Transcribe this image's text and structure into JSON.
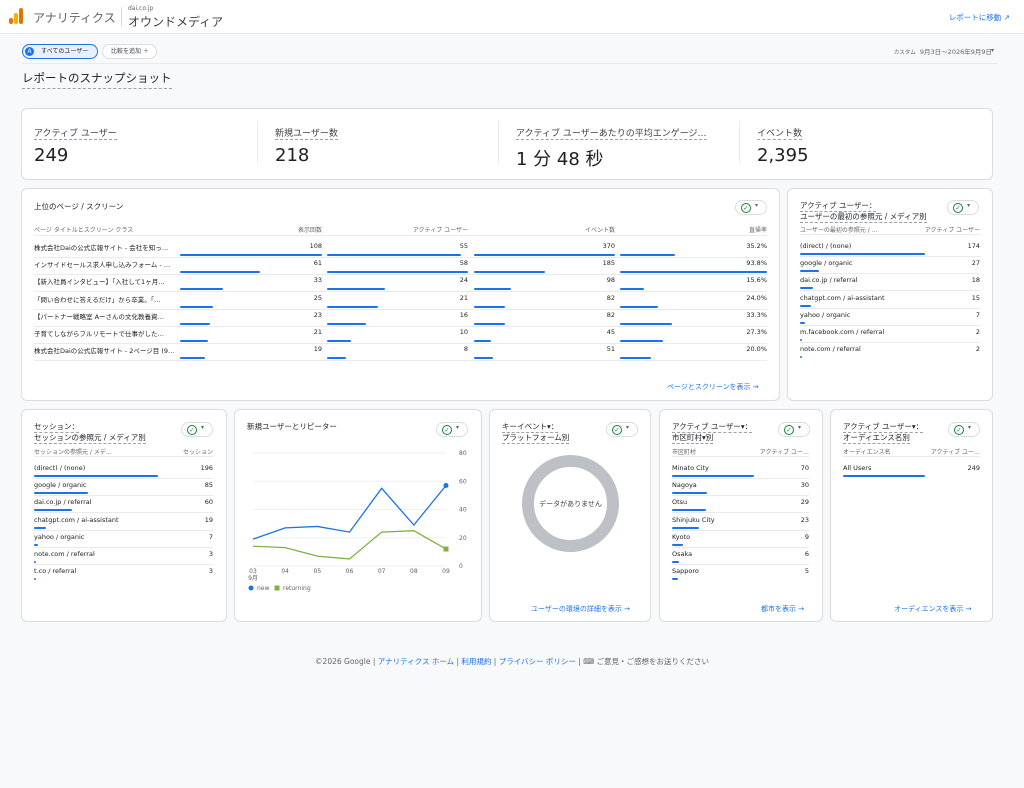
{
  "header": {
    "app_title": "アナリティクス",
    "account": "dai.co.jp",
    "property": "オウンドメディア",
    "goto_report": "レポートに移動"
  },
  "toolbar": {
    "segment_label": "すべてのユーザー",
    "segment_icon": "A",
    "compare_label": "比較を追加",
    "date_prefix": "カスタム",
    "date_range": "9月3日～2026年9月9日"
  },
  "page": {
    "title": "レポートのスナップショット"
  },
  "kpis": [
    {
      "label": "アクティブ ユーザー",
      "value": "249"
    },
    {
      "label": "新規ユーザー数",
      "value": "218"
    },
    {
      "label": "アクティブ ユーザーあたりの平均エンゲージ…",
      "value": "1 分 48 秒"
    },
    {
      "label": "イベント数",
      "value": "2,395"
    }
  ],
  "pages_card": {
    "title": "上位のページ / スクリーン",
    "headers": [
      "ページ タイトルとスクリーン クラス",
      "表示回数",
      "アクティブ ユーザー",
      "イベント数",
      "直帰率"
    ],
    "rows": [
      {
        "title": "株式会社Daiの公式広報サイト - 会社を知っ…",
        "views": "108",
        "views_f": 1.0,
        "users": "55",
        "users_f": 0.95,
        "events": "370",
        "events_f": 1.0,
        "rate": "35.2%",
        "rate_f": 0.376
      },
      {
        "title": "インサイドセールス求人申し込みフォーム - …",
        "views": "61",
        "views_f": 0.565,
        "users": "58",
        "users_f": 1.0,
        "events": "185",
        "events_f": 0.5,
        "rate": "93.8%",
        "rate_f": 1.0
      },
      {
        "title": "【新入社員インタビュー】「入社して1ヶ月…",
        "views": "33",
        "views_f": 0.306,
        "users": "24",
        "users_f": 0.414,
        "events": "98",
        "events_f": 0.265,
        "rate": "15.6%",
        "rate_f": 0.166
      },
      {
        "title": "「問い合わせに答えるだけ」から卒業。「…",
        "views": "25",
        "views_f": 0.231,
        "users": "21",
        "users_f": 0.362,
        "events": "82",
        "events_f": 0.222,
        "rate": "24.0%",
        "rate_f": 0.256
      },
      {
        "title": "【パートナー戦略室 Aーさんの文化教養資…",
        "views": "23",
        "views_f": 0.213,
        "users": "16",
        "users_f": 0.276,
        "events": "82",
        "events_f": 0.222,
        "rate": "33.3%",
        "rate_f": 0.355
      },
      {
        "title": "子育てしながらフルリモートで仕事がした…",
        "views": "21",
        "views_f": 0.194,
        "users": "10",
        "users_f": 0.172,
        "events": "45",
        "events_f": 0.122,
        "rate": "27.3%",
        "rate_f": 0.291
      },
      {
        "title": "株式会社Daiの公式広報サイト - 2ページ目 (9…",
        "views": "19",
        "views_f": 0.176,
        "users": "8",
        "users_f": 0.138,
        "events": "51",
        "events_f": 0.138,
        "rate": "20.0%",
        "rate_f": 0.213
      }
    ],
    "link": "ページとスクリーンを表示"
  },
  "source_card": {
    "title1": "アクティブ ユーザー：",
    "title2": "ユーザーの最初の参照元 / メディア別",
    "headers": [
      "ユーザーの最初の参照元 / …",
      "アクティブ ユーザー"
    ],
    "rows": [
      {
        "label": "(direct) / (none)",
        "value": "174",
        "f": 1.0
      },
      {
        "label": "google / organic",
        "value": "27",
        "f": 0.155
      },
      {
        "label": "dai.co.jp / referral",
        "value": "18",
        "f": 0.103
      },
      {
        "label": "chatgpt.com / ai-assistant",
        "value": "15",
        "f": 0.086
      },
      {
        "label": "yahoo / organic",
        "value": "7",
        "f": 0.04
      },
      {
        "label": "m.facebook.com / referral",
        "value": "2",
        "f": 0.011
      },
      {
        "label": "note.com / referral",
        "value": "2",
        "f": 0.011
      }
    ]
  },
  "session_card": {
    "title1": "セッション：",
    "title2": "セッションの参照元 / メディア別",
    "headers": [
      "セッションの参照元 / メデ…",
      "セッション"
    ],
    "rows": [
      {
        "label": "(direct) / (none)",
        "value": "196",
        "f": 1.0
      },
      {
        "label": "google / organic",
        "value": "85",
        "f": 0.434
      },
      {
        "label": "dai.co.jp / referral",
        "value": "60",
        "f": 0.306
      },
      {
        "label": "chatgpt.com / ai-assistant",
        "value": "19",
        "f": 0.097
      },
      {
        "label": "yahoo / organic",
        "value": "7",
        "f": 0.036
      },
      {
        "label": "note.com / referral",
        "value": "3",
        "f": 0.015
      },
      {
        "label": "t.co / referral",
        "value": "3",
        "f": 0.015
      }
    ]
  },
  "chart_data": {
    "type": "line",
    "title": "新規ユーザーとリピーター",
    "x": [
      "03",
      "04",
      "05",
      "06",
      "07",
      "08",
      "09"
    ],
    "x_sub": "9月",
    "ylim": [
      0,
      80
    ],
    "y_ticks": [
      "0",
      "20",
      "40",
      "60",
      "80"
    ],
    "series": [
      {
        "name": "new",
        "values": [
          19,
          27,
          28,
          24,
          55,
          29,
          57
        ],
        "color": "#1a73e8"
      },
      {
        "name": "returning",
        "values": [
          14,
          13,
          7,
          5,
          24,
          25,
          12
        ],
        "color": "#7cb342"
      }
    ]
  },
  "platform_card": {
    "title1": "キーイベント▾：",
    "title2": "プラットフォーム別",
    "empty": "データがありません",
    "link": "ユーザーの環境の詳細を表示"
  },
  "city_card": {
    "title1": "アクティブ ユーザー▾：",
    "title2": "市区町村▾別",
    "headers": [
      "市区町村",
      "アクティブ ユー…"
    ],
    "rows": [
      {
        "label": "Minato City",
        "value": "70",
        "f": 1.0
      },
      {
        "label": "Nagoya",
        "value": "30",
        "f": 0.429
      },
      {
        "label": "Otsu",
        "value": "29",
        "f": 0.414
      },
      {
        "label": "Shinjuku City",
        "value": "23",
        "f": 0.329
      },
      {
        "label": "Kyoto",
        "value": "9",
        "f": 0.129
      },
      {
        "label": "Osaka",
        "value": "6",
        "f": 0.086
      },
      {
        "label": "Sapporo",
        "value": "5",
        "f": 0.071
      }
    ],
    "link": "都市を表示"
  },
  "audience_card": {
    "title1": "アクティブ ユーザー▾：",
    "title2": "オーディエンス名別",
    "headers": [
      "オーディエンス名",
      "アクティブ ユー…"
    ],
    "rows": [
      {
        "label": "All Users",
        "value": "249",
        "f": 1.0
      }
    ],
    "link": "オーディエンスを表示"
  },
  "footer": {
    "copyright": "©2026 Google",
    "home": "アナリティクス ホーム",
    "terms": "利用規約",
    "privacy": "プライバシー ポリシー",
    "feedback": "ご意見・ご感想をお送りください"
  }
}
